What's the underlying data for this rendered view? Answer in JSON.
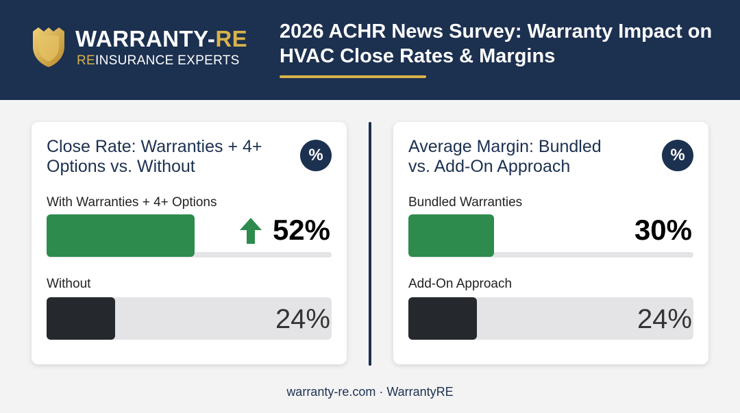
{
  "header": {
    "brand_name_main": "WARRANTY-",
    "brand_name_accent": "RE",
    "brand_tag_accent": "RE",
    "brand_tag_rest": "INSURANCE EXPERTS",
    "title": "2026 ACHR News Survey: Warranty Impact on HVAC Close Rates & Margins",
    "colors": {
      "navy": "#1c3050",
      "gold": "#d8b24a"
    }
  },
  "chart_data": [
    {
      "type": "bar",
      "title": "Close Rate: Warranties + 4+ Options vs. Without",
      "badge": "%",
      "categories": [
        "With Warranties + 4+ Options",
        "Without"
      ],
      "values": [
        52,
        24
      ],
      "value_labels": [
        "52%",
        "24%"
      ],
      "unit": "%",
      "xlim": [
        0,
        100
      ],
      "colors": [
        "#2e8b4e",
        "#25282d"
      ],
      "highlight_icon": "arrow-up-icon"
    },
    {
      "type": "bar",
      "title": "Average Margin: Bundled vs. Add-On Approach",
      "badge": "%",
      "categories": [
        "Bundled Warranties",
        "Add-On Approach"
      ],
      "values": [
        30,
        24
      ],
      "value_labels": [
        "30%",
        "24%"
      ],
      "unit": "%",
      "xlim": [
        0,
        100
      ],
      "colors": [
        "#2e8b4e",
        "#25282d"
      ]
    }
  ],
  "footer": "warranty-re.com · WarrantyRE"
}
